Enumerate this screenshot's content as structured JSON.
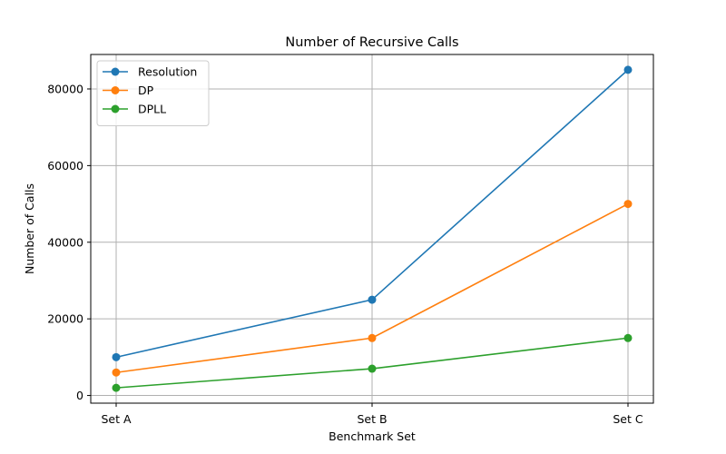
{
  "chart_data": {
    "type": "line",
    "title": "Number of Recursive Calls",
    "xlabel": "Benchmark Set",
    "ylabel": "Number of Calls",
    "categories": [
      "Set A",
      "Set B",
      "Set C"
    ],
    "ylim": [
      -2000,
      89000
    ],
    "yticks": [
      0,
      20000,
      40000,
      60000,
      80000
    ],
    "grid": true,
    "legend_position": "top-left",
    "series": [
      {
        "name": "Resolution",
        "color": "#1f77b4",
        "values": [
          10000,
          25000,
          85000
        ]
      },
      {
        "name": "DP",
        "color": "#ff7f0e",
        "values": [
          6000,
          15000,
          50000
        ]
      },
      {
        "name": "DPLL",
        "color": "#2ca02c",
        "values": [
          2000,
          7000,
          15000
        ]
      }
    ]
  }
}
